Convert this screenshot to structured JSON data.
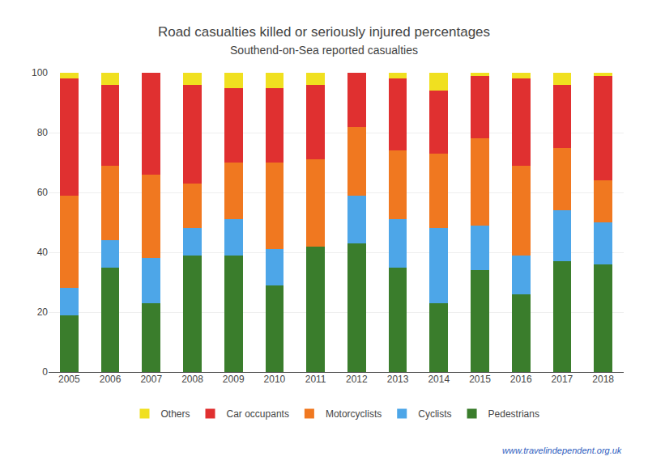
{
  "chart_data": {
    "type": "bar",
    "stacked": true,
    "title": "Road casualties killed or seriously injured percentages",
    "subtitle": "Southend-on-Sea reported casualties",
    "categories": [
      "2005",
      "2006",
      "2007",
      "2008",
      "2009",
      "2010",
      "2011",
      "2012",
      "2013",
      "2014",
      "2015",
      "2016",
      "2017",
      "2018"
    ],
    "series": [
      {
        "name": "Pedestrians",
        "color": "#3a7d2c",
        "values": [
          19,
          35,
          23,
          39,
          39,
          29,
          42,
          43,
          35,
          23,
          34,
          26,
          37,
          36
        ]
      },
      {
        "name": "Cyclists",
        "color": "#4da6e8",
        "values": [
          9,
          9,
          15,
          9,
          12,
          12,
          0,
          16,
          16,
          25,
          15,
          13,
          17,
          14
        ]
      },
      {
        "name": "Motorcyclists",
        "color": "#f07820",
        "values": [
          31,
          25,
          28,
          15,
          19,
          29,
          29,
          23,
          23,
          25,
          29,
          30,
          21,
          14
        ]
      },
      {
        "name": "Car occupants",
        "color": "#e03030",
        "values": [
          39,
          27,
          34,
          33,
          25,
          25,
          25,
          18,
          24,
          21,
          21,
          29,
          21,
          35
        ]
      },
      {
        "name": "Others",
        "color": "#f0e020",
        "values": [
          2,
          4,
          0,
          4,
          5,
          5,
          4,
          0,
          2,
          6,
          1,
          2,
          4,
          1
        ]
      }
    ],
    "ylim": [
      0,
      100
    ],
    "yticks": [
      0,
      20,
      40,
      60,
      80,
      100
    ],
    "grid": true,
    "legend": "bottom",
    "annotations": [
      "www.travelindependent.org.uk"
    ]
  }
}
